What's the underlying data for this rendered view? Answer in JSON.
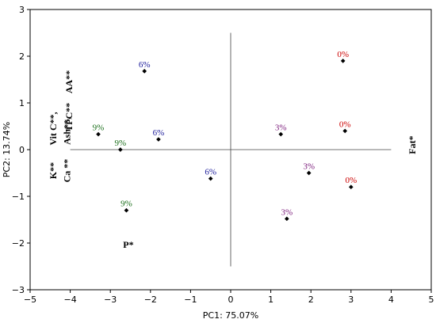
{
  "chart_data": {
    "type": "scatter",
    "xlabel": "PC1: 75.07%",
    "ylabel": "PC2: 13.74%",
    "xlim": [
      -5,
      5
    ],
    "ylim": [
      -3,
      3
    ],
    "xticks": [
      -5,
      -4,
      -3,
      -2,
      -1,
      0,
      1,
      2,
      3,
      4,
      5
    ],
    "yticks": [
      -3,
      -2,
      -1,
      0,
      1,
      2,
      3
    ],
    "grid": false,
    "points": [
      {
        "label": "0%",
        "x": 2.8,
        "y": 1.9,
        "color": "#cc0000"
      },
      {
        "label": "0%",
        "x": 2.85,
        "y": 0.4,
        "color": "#cc0000"
      },
      {
        "label": "0%",
        "x": 3.0,
        "y": -0.8,
        "color": "#cc0000"
      },
      {
        "label": "3%",
        "x": 1.25,
        "y": 0.33,
        "color": "#7a1a7a"
      },
      {
        "label": "3%",
        "x": 1.95,
        "y": -0.5,
        "color": "#7a1a7a"
      },
      {
        "label": "3%",
        "x": 1.4,
        "y": -1.48,
        "color": "#7a1a7a"
      },
      {
        "label": "6%",
        "x": -2.15,
        "y": 1.68,
        "color": "#1a1a9a"
      },
      {
        "label": "6%",
        "x": -1.8,
        "y": 0.22,
        "color": "#1a1a9a"
      },
      {
        "label": "6%",
        "x": -0.5,
        "y": -0.62,
        "color": "#1a1a9a"
      },
      {
        "label": "9%",
        "x": -3.3,
        "y": 0.33,
        "color": "#1a6e1a"
      },
      {
        "label": "9%",
        "x": -2.75,
        "y": 0.0,
        "color": "#1a6e1a"
      },
      {
        "label": "9%",
        "x": -2.6,
        "y": -1.3,
        "color": "#1a6e1a"
      }
    ],
    "variables": [
      {
        "label": "AA**",
        "x": -3.95,
        "y": 1.45,
        "rotate": -90
      },
      {
        "label": "TPC**",
        "x": -3.95,
        "y": 0.7,
        "rotate": -90
      },
      {
        "label": "Vit C**,",
        "x": -4.35,
        "y": 0.45,
        "rotate": -90
      },
      {
        "label": "Ash**,",
        "x": -4.0,
        "y": 0.4,
        "rotate": -90
      },
      {
        "label": "K**",
        "x": -4.35,
        "y": -0.45,
        "rotate": -90
      },
      {
        "label": "Ca **",
        "x": -4.0,
        "y": -0.45,
        "rotate": -90
      },
      {
        "label": "Fat*",
        "x": 4.6,
        "y": 0.1,
        "rotate": -90
      },
      {
        "label": "P*",
        "x": -2.55,
        "y": -2.1,
        "rotate": 0
      }
    ],
    "center_axes": {
      "x_from": -4,
      "x_to": 4,
      "y_from": -2.5,
      "y_to": 2.5
    }
  }
}
